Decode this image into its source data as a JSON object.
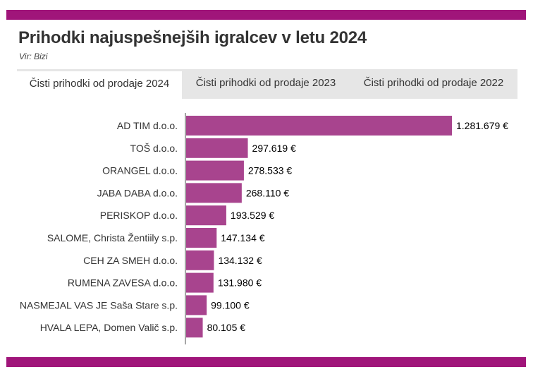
{
  "header": {
    "title": "Prihodki najuspešnejših igralcev v letu 2024",
    "source": "Vir: Bizi"
  },
  "tabs": [
    {
      "label": "Čisti prihodki od prodaje 2024",
      "active": true
    },
    {
      "label": "Čisti prihodki od prodaje 2023",
      "active": false
    },
    {
      "label": "Čisti prihodki od prodaje 2022",
      "active": false
    }
  ],
  "colors": {
    "accent": "#a0157a",
    "bar": "#a8448e",
    "axis": "#888888"
  },
  "chart_data": {
    "type": "bar",
    "orientation": "horizontal",
    "categories": [
      "AD TIM d.o.o.",
      "TOŠ d.o.o.",
      "ORANGEL d.o.o.",
      "JABA DABA d.o.o.",
      "PERISKOP d.o.o.",
      "SALOME, Christa Žentiily s.p.",
      "CEH ZA SMEH d.o.o.",
      "RUMENA ZAVESA d.o.o.",
      "NASMEJAL VAS JE Saša Stare s.p.",
      "HVALA LEPA, Domen Valič s.p."
    ],
    "values": [
      1281679,
      297619,
      278533,
      268110,
      193529,
      147134,
      134132,
      131980,
      99100,
      80105
    ],
    "value_labels": [
      "1.281.679 €",
      "297.619 €",
      "278.533 €",
      "268.110 €",
      "193.529 €",
      "147.134 €",
      "134.132 €",
      "131.980 €",
      "99.100 €",
      "80.105 €"
    ],
    "grid": false,
    "legend": false
  }
}
